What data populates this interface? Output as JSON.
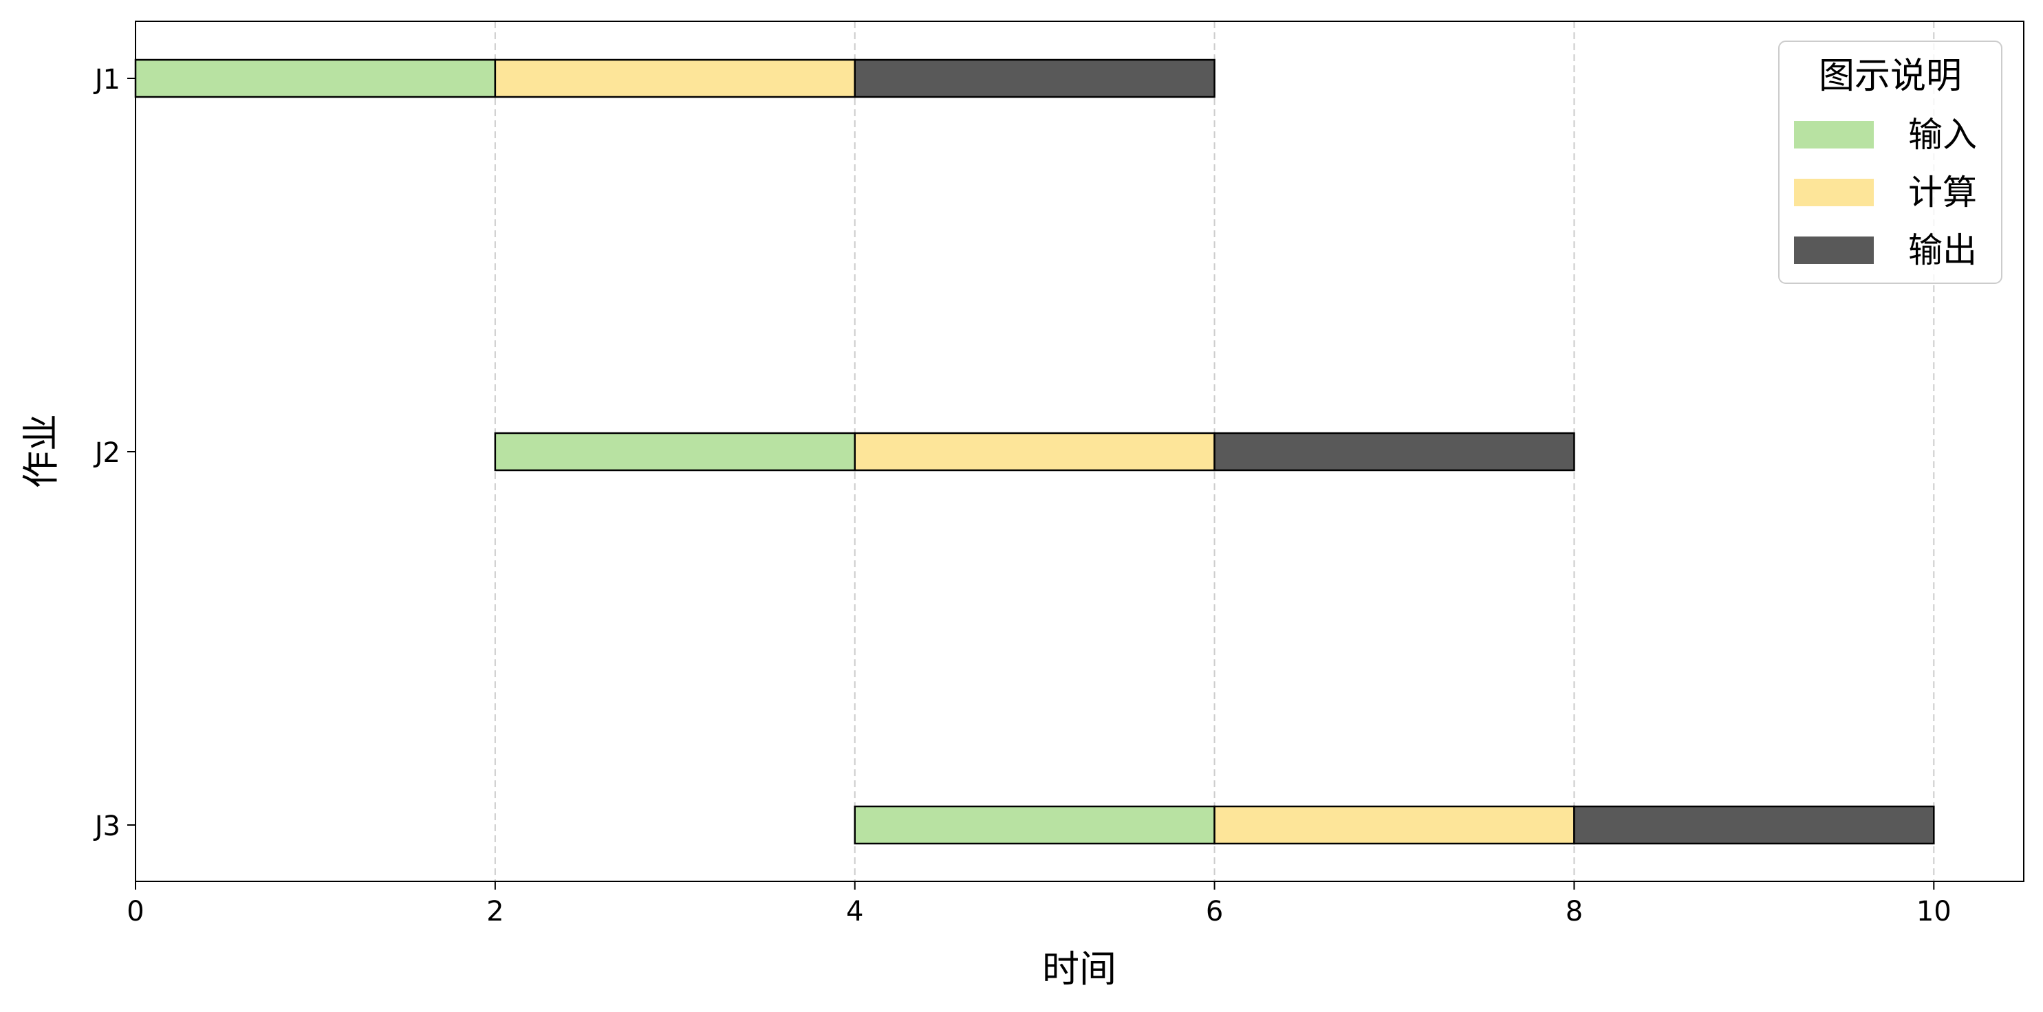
{
  "chart_data": {
    "type": "bar",
    "orientation": "horizontal",
    "subtype": "gantt",
    "title": "",
    "xlabel": "时间",
    "ylabel": "作业",
    "xlim": [
      0,
      10.5
    ],
    "xticks": [
      0,
      2,
      4,
      6,
      8,
      10
    ],
    "categories": [
      "J1",
      "J2",
      "J3"
    ],
    "grid": {
      "x": true,
      "y": false,
      "style": "dashed"
    },
    "legend": {
      "title": "图示说明",
      "placement": "top-right",
      "entries": [
        {
          "name": "输入",
          "color": "#b8e2a2"
        },
        {
          "name": "计算",
          "color": "#fde599"
        },
        {
          "name": "输出",
          "color": "#595959"
        }
      ]
    },
    "series": [
      {
        "name": "输入",
        "color": "#b8e2a2",
        "segments": [
          {
            "job": "J1",
            "start": 0,
            "end": 2
          },
          {
            "job": "J2",
            "start": 2,
            "end": 4
          },
          {
            "job": "J3",
            "start": 4,
            "end": 6
          }
        ]
      },
      {
        "name": "计算",
        "color": "#fde599",
        "segments": [
          {
            "job": "J1",
            "start": 2,
            "end": 4
          },
          {
            "job": "J2",
            "start": 4,
            "end": 6
          },
          {
            "job": "J3",
            "start": 6,
            "end": 8
          }
        ]
      },
      {
        "name": "输出",
        "color": "#595959",
        "segments": [
          {
            "job": "J1",
            "start": 4,
            "end": 6
          },
          {
            "job": "J2",
            "start": 6,
            "end": 8
          },
          {
            "job": "J3",
            "start": 8,
            "end": 10
          }
        ]
      }
    ]
  }
}
